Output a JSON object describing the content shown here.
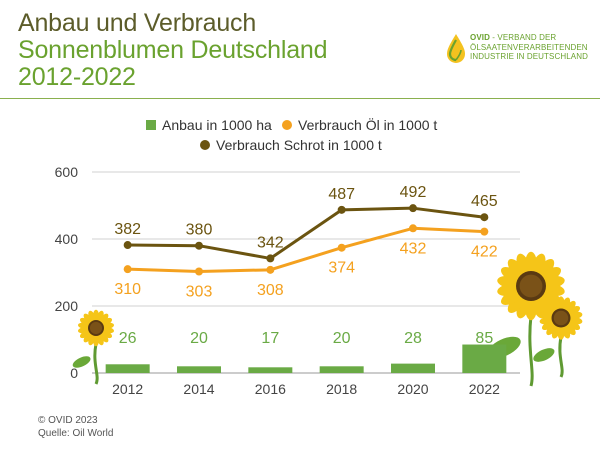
{
  "header": {
    "title_line1": "Anbau und Verbrauch",
    "title_line2": "Sonnenblumen Deutschland",
    "title_line3": "2012-2022"
  },
  "logo": {
    "brand": "OVID",
    "line1_rest": " - VERBAND DER",
    "line2": "ÖLSAATENVERARBEITENDEN",
    "line3": "INDUSTRIE IN DEUTSCHLAND"
  },
  "footer": {
    "copyright": "© OVID 2023",
    "source": "Quelle: Oil World"
  },
  "colors": {
    "anbau": "#6aaa45",
    "oel": "#f4a11f",
    "schrot": "#6b5410",
    "grid": "#d0d0d0",
    "axis_text": "#444444"
  },
  "chart_data": {
    "type": "bar",
    "categories": [
      "2012",
      "2014",
      "2016",
      "2018",
      "2020",
      "2022"
    ],
    "ylim": [
      0,
      600
    ],
    "yticks": [
      0,
      200,
      400,
      600
    ],
    "grid": "horizontal",
    "legend_position": "top",
    "series": [
      {
        "name": "Anbau in 1000 ha",
        "type": "bar",
        "values": [
          26,
          20,
          17,
          20,
          28,
          85
        ]
      },
      {
        "name": "Verbrauch Öl in 1000 t",
        "type": "line",
        "values": [
          310,
          303,
          308,
          374,
          432,
          422
        ]
      },
      {
        "name": "Verbrauch Schrot in 1000 t",
        "type": "line",
        "values": [
          382,
          380,
          342,
          487,
          492,
          465
        ]
      }
    ]
  }
}
